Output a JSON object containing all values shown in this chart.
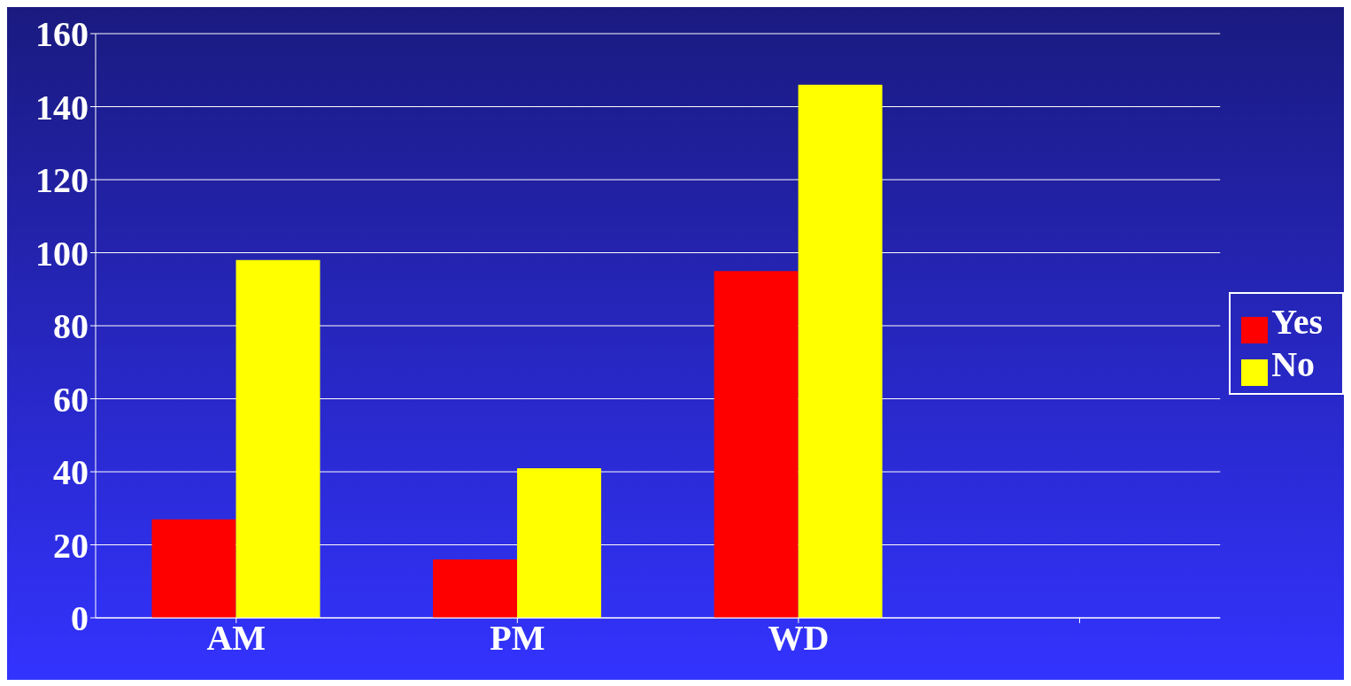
{
  "chart_data": {
    "type": "bar",
    "categories": [
      "AM",
      "PM",
      "WD",
      null
    ],
    "series": [
      {
        "name": "Yes",
        "color": "#ff0000",
        "values": [
          27,
          16,
          95,
          null
        ]
      },
      {
        "name": "No",
        "color": "#ffff00",
        "values": [
          98,
          41,
          146,
          null
        ]
      }
    ],
    "ylim": [
      0,
      160
    ],
    "yticks": [
      0,
      20,
      40,
      60,
      80,
      100,
      120,
      140,
      160
    ],
    "grid": "y",
    "legend": "right"
  }
}
